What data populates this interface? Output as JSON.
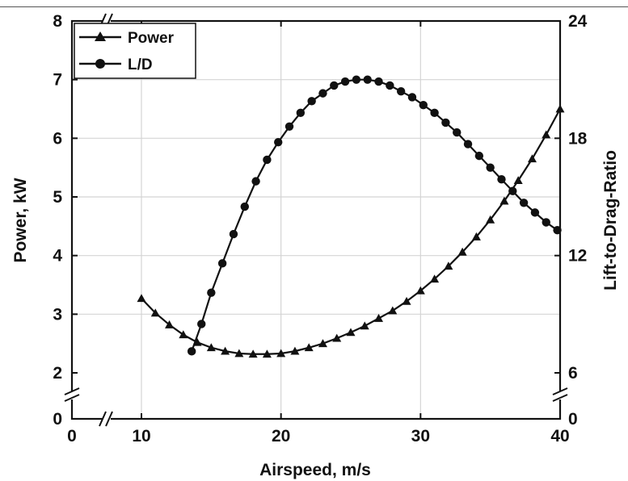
{
  "chart_data": {
    "type": "line",
    "xlabel": "Airspeed, m/s",
    "ylabel": "Power, kW",
    "y2label": "Lift-to-Drag-Ratio",
    "x_ticks": [
      "0",
      "10",
      "20",
      "30",
      "40"
    ],
    "y_ticks": [
      "0",
      "2",
      "3",
      "4",
      "5",
      "6",
      "7",
      "8"
    ],
    "y2_ticks": [
      "0",
      "6",
      "12",
      "18",
      "24"
    ],
    "x_break": [
      0,
      10
    ],
    "y_break": [
      0,
      2
    ],
    "y2_break": [
      0,
      6
    ],
    "xlim": [
      0,
      40
    ],
    "ylim": [
      0,
      8
    ],
    "y2lim": [
      0,
      24
    ],
    "grid": true,
    "legend_position": "top-left",
    "series": [
      {
        "name": "Power",
        "marker": "triangle",
        "axis": "left",
        "color": "#111111",
        "x": [
          10,
          11,
          12,
          13,
          14,
          15,
          16,
          17,
          18,
          19,
          20,
          21,
          22,
          23,
          24,
          25,
          26,
          27,
          28,
          29,
          30,
          31,
          32,
          33,
          34,
          35,
          36,
          37,
          38,
          39,
          40
        ],
        "y": [
          3.27,
          3.02,
          2.82,
          2.65,
          2.52,
          2.43,
          2.37,
          2.33,
          2.32,
          2.32,
          2.33,
          2.37,
          2.43,
          2.5,
          2.59,
          2.69,
          2.8,
          2.93,
          3.06,
          3.22,
          3.4,
          3.6,
          3.82,
          4.06,
          4.32,
          4.61,
          4.93,
          5.28,
          5.65,
          6.06,
          6.5
        ]
      },
      {
        "name": "L/D",
        "marker": "circle",
        "axis": "right",
        "color": "#111111",
        "x": [
          13.6,
          14.3,
          15,
          15.8,
          16.6,
          17.4,
          18.2,
          19,
          19.8,
          20.6,
          21.4,
          22.2,
          23,
          23.8,
          24.6,
          25.4,
          26.2,
          27,
          27.8,
          28.6,
          29.4,
          30.2,
          31,
          31.8,
          32.6,
          33.4,
          34.2,
          35,
          35.8,
          36.6,
          37.4,
          38.2,
          39,
          39.8
        ],
        "y": [
          7.1,
          8.5,
          10.1,
          11.6,
          13.1,
          14.5,
          15.8,
          16.9,
          17.8,
          18.6,
          19.3,
          19.9,
          20.3,
          20.7,
          20.9,
          21.0,
          21.0,
          20.9,
          20.7,
          20.4,
          20.1,
          19.7,
          19.3,
          18.8,
          18.3,
          17.7,
          17.1,
          16.5,
          15.9,
          15.3,
          14.7,
          14.2,
          13.7,
          13.3
        ]
      }
    ]
  }
}
